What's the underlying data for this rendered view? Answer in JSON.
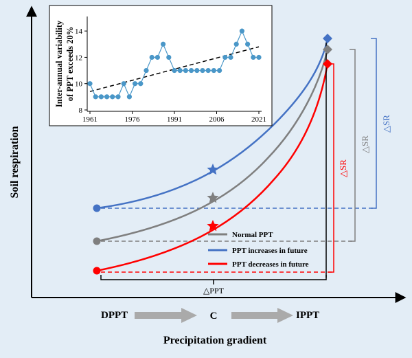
{
  "colors": {
    "background": "#e3edf6",
    "normal": "#7f7f7f",
    "increase": "#4472c4",
    "decrease": "#ff0000",
    "axis": "#000000"
  },
  "axes": {
    "ylabel": "Soil respiration",
    "xlabel": "Precipitation gradient"
  },
  "gradient": {
    "left": "DPPT",
    "center": "C",
    "right": "IPPT"
  },
  "annotations": {
    "delta_ppt": "△PPT",
    "delta_sr": "△SR"
  },
  "legend": [
    {
      "label": "Normal PPT",
      "color": "#7f7f7f"
    },
    {
      "label": "PPT increases in future",
      "color": "#4472c4"
    },
    {
      "label": "PPT decreases in future",
      "color": "#ff0000"
    }
  ],
  "inset": {
    "ylabel_line1": "Inter-annual variability",
    "ylabel_line2": "of PPT exceeds 20%",
    "x_ticks": [
      "1961",
      "1976",
      "1991",
      "2006",
      "2021"
    ],
    "y_ticks": [
      "8",
      "10",
      "12",
      "14"
    ]
  },
  "chart_data": {
    "type": "line",
    "ylabel": "Inter-annual variability of PPT exceeds 20%",
    "xlim": [
      1961,
      2021
    ],
    "ylim": [
      8,
      15
    ],
    "x": [
      1961,
      1963,
      1965,
      1967,
      1969,
      1971,
      1973,
      1975,
      1977,
      1979,
      1981,
      1983,
      1985,
      1987,
      1989,
      1991,
      1993,
      1995,
      1997,
      1999,
      2001,
      2003,
      2005,
      2007,
      2009,
      2011,
      2013,
      2015,
      2017,
      2019,
      2021
    ],
    "y": [
      10,
      9,
      9,
      9,
      9,
      9,
      10,
      9,
      10,
      10,
      11,
      12,
      12,
      13,
      12,
      11,
      11,
      11,
      11,
      11,
      11,
      11,
      11,
      11,
      12,
      12,
      13,
      14,
      13,
      12,
      12
    ],
    "trend": {
      "from": [
        1961,
        9.4
      ],
      "to": [
        2021,
        12.8
      ]
    }
  }
}
